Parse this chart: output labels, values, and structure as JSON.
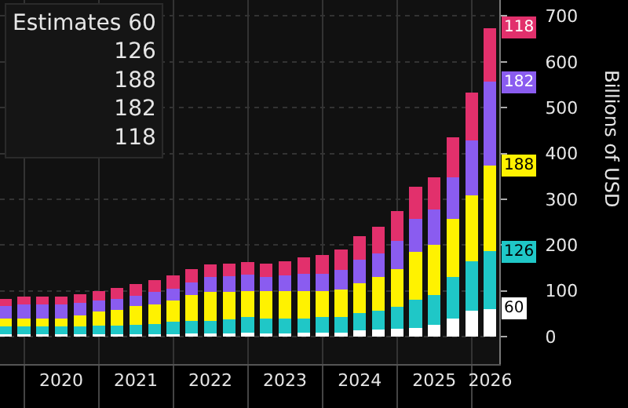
{
  "chart_data": {
    "type": "bar",
    "stacked": true,
    "ylabel": "Billions of USD",
    "legend_title": "Estimates",
    "grid": true,
    "x": [
      "2019-09-30",
      "2019-12-31",
      "2020-03-31",
      "2020-06-30",
      "2020-09-30",
      "2020-12-31",
      "2021-03-31",
      "2021-06-30",
      "2021-09-30",
      "2021-12-31",
      "2022-03-31",
      "2022-06-30",
      "2022-09-30",
      "2022-12-31",
      "2023-03-31",
      "2023-06-30",
      "2023-09-30",
      "2023-12-31",
      "2024-03-31",
      "2024-06-30",
      "2024-09-30",
      "2024-12-31",
      "2025-03-31",
      "2025-06-30",
      "2025-09-30",
      "2025-12-31",
      "2026-03-31"
    ],
    "xlim": [
      "2019-09-05",
      "2026-05-15"
    ],
    "xticks": [
      {
        "value": "2020-01-01",
        "label": null
      },
      {
        "value": "2021-01-01",
        "label": null
      },
      {
        "value": "2022-01-01",
        "label": null
      },
      {
        "value": "2023-01-01",
        "label": null
      },
      {
        "value": "2024-01-01",
        "label": null
      },
      {
        "value": "2025-01-01",
        "label": null
      },
      {
        "value": "2026-01-01",
        "label": null
      },
      {
        "value": "2020-07-01",
        "label": "2020"
      },
      {
        "value": "2021-07-01",
        "label": "2021"
      },
      {
        "value": "2022-07-01",
        "label": "2022"
      },
      {
        "value": "2023-07-01",
        "label": "2023"
      },
      {
        "value": "2024-07-01",
        "label": "2024"
      },
      {
        "value": "2025-07-01",
        "label": "2025"
      },
      {
        "value": "2026-04-01",
        "label": "2026"
      }
    ],
    "ylim": [
      -60,
      735
    ],
    "yticks": [
      0,
      100,
      200,
      300,
      400,
      500,
      600,
      700
    ],
    "series": [
      {
        "color": "#ffffff",
        "values": [
          5,
          5,
          5,
          5,
          5,
          5,
          5,
          5,
          5,
          5,
          6,
          6,
          6,
          8,
          7,
          7,
          8,
          8,
          9,
          14,
          15,
          17,
          19,
          26,
          40,
          57,
          60
        ],
        "value_labels": [
          null,
          null,
          null,
          null,
          null,
          null,
          null,
          null,
          null,
          null,
          null,
          null,
          null,
          null,
          null,
          null,
          null,
          null,
          null,
          null,
          null,
          null,
          null,
          null,
          null,
          null,
          "60"
        ]
      },
      {
        "color": "#1fc7c7",
        "values": [
          17,
          17,
          17,
          17,
          17,
          19,
          19,
          21,
          22,
          27,
          29,
          29,
          32,
          34,
          33,
          33,
          32,
          34,
          34,
          37,
          42,
          48,
          61,
          65,
          91,
          108,
          126
        ],
        "value_labels": [
          null,
          null,
          null,
          null,
          null,
          null,
          null,
          null,
          null,
          null,
          null,
          null,
          null,
          null,
          null,
          null,
          null,
          null,
          null,
          null,
          null,
          null,
          null,
          null,
          null,
          null,
          "126"
        ]
      },
      {
        "color": "#fff200",
        "values": [
          17,
          18,
          18,
          18,
          25,
          31,
          34,
          40,
          43,
          46,
          55,
          63,
          60,
          58,
          59,
          59,
          59,
          58,
          60,
          66,
          74,
          83,
          105,
          109,
          126,
          143,
          188
        ],
        "value_labels": [
          null,
          null,
          null,
          null,
          null,
          null,
          null,
          null,
          null,
          null,
          null,
          null,
          null,
          null,
          null,
          null,
          null,
          null,
          null,
          null,
          null,
          null,
          null,
          null,
          null,
          null,
          "188"
        ]
      },
      {
        "color": "#8a5cf0",
        "values": [
          28,
          30,
          30,
          30,
          26,
          23,
          25,
          23,
          28,
          26,
          29,
          32,
          34,
          35,
          32,
          34,
          38,
          37,
          42,
          51,
          51,
          61,
          72,
          77,
          91,
          120,
          182
        ],
        "value_labels": [
          null,
          null,
          null,
          null,
          null,
          null,
          null,
          null,
          null,
          null,
          null,
          null,
          null,
          null,
          null,
          null,
          null,
          null,
          null,
          null,
          null,
          null,
          null,
          null,
          null,
          null,
          "182"
        ]
      },
      {
        "color": "#e2306c",
        "values": [
          16,
          17,
          17,
          17,
          19,
          22,
          24,
          26,
          26,
          29,
          28,
          27,
          28,
          28,
          29,
          32,
          36,
          42,
          46,
          51,
          57,
          65,
          71,
          70,
          88,
          105,
          118
        ],
        "value_labels": [
          null,
          null,
          null,
          null,
          null,
          null,
          null,
          null,
          null,
          null,
          null,
          null,
          null,
          null,
          null,
          null,
          null,
          null,
          null,
          null,
          null,
          null,
          null,
          null,
          null,
          null,
          "118"
        ]
      }
    ]
  }
}
